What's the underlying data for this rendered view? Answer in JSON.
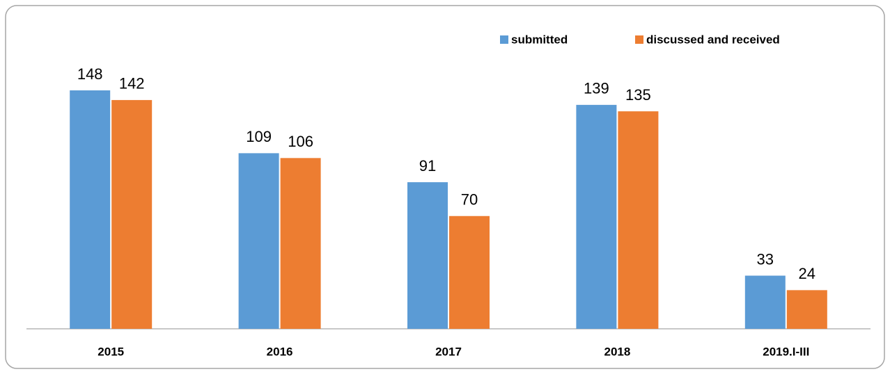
{
  "chart_data": {
    "type": "bar",
    "categories": [
      "2015",
      "2016",
      "2017",
      "2018",
      "2019.I-III"
    ],
    "series": [
      {
        "name": "submitted",
        "color": "#5b9bd5",
        "values": [
          148,
          109,
          91,
          139,
          33
        ]
      },
      {
        "name": "discussed and received",
        "color": "#ed7d31",
        "values": [
          142,
          106,
          70,
          135,
          24
        ]
      }
    ],
    "legend": "top-right"
  }
}
